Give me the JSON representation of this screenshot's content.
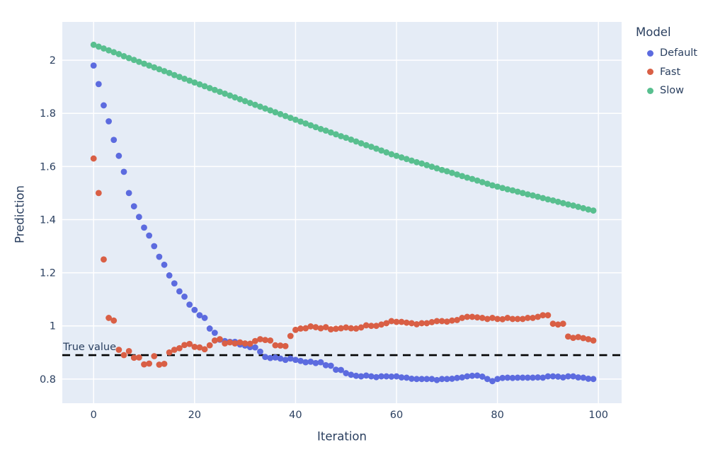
{
  "figure": {
    "background": "#ffffff",
    "plot_background": "#e5ecf6",
    "grid_color": "#ffffff",
    "font_color": "#2a3f5f"
  },
  "chart_data": {
    "type": "scatter",
    "title": "",
    "xlabel": "Iteration",
    "ylabel": "Prediction",
    "xlim": [
      -6.2,
      104.6
    ],
    "ylim": [
      0.709,
      2.144
    ],
    "xticks": [
      0,
      20,
      40,
      60,
      80,
      100
    ],
    "yticks": [
      0.8,
      1,
      1.2,
      1.4,
      1.6,
      1.8,
      2
    ],
    "grid": true,
    "legend": {
      "title": "Model",
      "position": "top-right-outside"
    },
    "hline": {
      "y": 0.89,
      "label": "True value",
      "color": "#000000",
      "style": "dashed"
    },
    "marker_diameter_px": 8.8,
    "x": [
      0,
      1,
      2,
      3,
      4,
      5,
      6,
      7,
      8,
      9,
      10,
      11,
      12,
      13,
      14,
      15,
      16,
      17,
      18,
      19,
      20,
      21,
      22,
      23,
      24,
      25,
      26,
      27,
      28,
      29,
      30,
      31,
      32,
      33,
      34,
      35,
      36,
      37,
      38,
      39,
      40,
      41,
      42,
      43,
      44,
      45,
      46,
      47,
      48,
      49,
      50,
      51,
      52,
      53,
      54,
      55,
      56,
      57,
      58,
      59,
      60,
      61,
      62,
      63,
      64,
      65,
      66,
      67,
      68,
      69,
      70,
      71,
      72,
      73,
      74,
      75,
      76,
      77,
      78,
      79,
      80,
      81,
      82,
      83,
      84,
      85,
      86,
      87,
      88,
      89,
      90,
      91,
      92,
      93,
      94,
      95,
      96,
      97,
      98,
      99
    ],
    "series": [
      {
        "name": "Default",
        "color": "#5c6bdf",
        "values": [
          1.98,
          1.91,
          1.83,
          1.77,
          1.7,
          1.64,
          1.58,
          1.5,
          1.45,
          1.41,
          1.37,
          1.34,
          1.3,
          1.26,
          1.23,
          1.19,
          1.16,
          1.13,
          1.11,
          1.08,
          1.06,
          1.04,
          1.03,
          0.99,
          0.974,
          0.948,
          0.943,
          0.94,
          0.94,
          0.93,
          0.926,
          0.92,
          0.919,
          0.903,
          0.883,
          0.879,
          0.881,
          0.877,
          0.872,
          0.877,
          0.872,
          0.868,
          0.863,
          0.865,
          0.86,
          0.863,
          0.852,
          0.85,
          0.835,
          0.834,
          0.822,
          0.816,
          0.812,
          0.81,
          0.813,
          0.81,
          0.807,
          0.81,
          0.81,
          0.809,
          0.81,
          0.806,
          0.805,
          0.801,
          0.8,
          0.8,
          0.8,
          0.8,
          0.796,
          0.8,
          0.8,
          0.801,
          0.804,
          0.806,
          0.81,
          0.812,
          0.813,
          0.809,
          0.8,
          0.792,
          0.8,
          0.804,
          0.805,
          0.804,
          0.805,
          0.805,
          0.805,
          0.805,
          0.806,
          0.805,
          0.81,
          0.81,
          0.809,
          0.806,
          0.81,
          0.81,
          0.806,
          0.805,
          0.801,
          0.8
        ]
      },
      {
        "name": "Fast",
        "color": "#d95f45",
        "values": [
          1.63,
          1.5,
          1.25,
          1.03,
          1.02,
          0.91,
          0.89,
          0.905,
          0.88,
          0.881,
          0.855,
          0.858,
          0.886,
          0.854,
          0.857,
          0.9,
          0.91,
          0.916,
          0.928,
          0.932,
          0.921,
          0.919,
          0.912,
          0.927,
          0.945,
          0.95,
          0.934,
          0.938,
          0.934,
          0.938,
          0.934,
          0.933,
          0.943,
          0.95,
          0.947,
          0.945,
          0.927,
          0.926,
          0.924,
          0.962,
          0.985,
          0.99,
          0.991,
          0.998,
          0.995,
          0.991,
          0.995,
          0.987,
          0.989,
          0.991,
          0.994,
          0.991,
          0.99,
          0.994,
          1.002,
          1.0,
          1.0,
          1.005,
          1.01,
          1.018,
          1.015,
          1.015,
          1.012,
          1.01,
          1.006,
          1.01,
          1.01,
          1.014,
          1.018,
          1.018,
          1.016,
          1.02,
          1.022,
          1.03,
          1.034,
          1.034,
          1.032,
          1.03,
          1.026,
          1.03,
          1.026,
          1.025,
          1.03,
          1.026,
          1.026,
          1.026,
          1.03,
          1.03,
          1.034,
          1.04,
          1.04,
          1.008,
          1.005,
          1.008,
          0.96,
          0.955,
          0.958,
          0.954,
          0.95,
          0.945
        ]
      },
      {
        "name": "Slow",
        "color": "#58bf8f",
        "values": [
          2.058,
          2.051,
          2.044,
          2.037,
          2.03,
          2.023,
          2.015,
          2.008,
          2.001,
          1.994,
          1.987,
          1.98,
          1.973,
          1.966,
          1.959,
          1.952,
          1.944,
          1.937,
          1.93,
          1.923,
          1.916,
          1.909,
          1.902,
          1.895,
          1.888,
          1.881,
          1.874,
          1.867,
          1.86,
          1.853,
          1.846,
          1.839,
          1.832,
          1.825,
          1.818,
          1.811,
          1.804,
          1.797,
          1.79,
          1.783,
          1.776,
          1.769,
          1.762,
          1.755,
          1.748,
          1.741,
          1.735,
          1.728,
          1.721,
          1.714,
          1.708,
          1.701,
          1.694,
          1.687,
          1.68,
          1.674,
          1.667,
          1.66,
          1.653,
          1.646,
          1.64,
          1.634,
          1.628,
          1.622,
          1.616,
          1.611,
          1.605,
          1.599,
          1.593,
          1.587,
          1.582,
          1.576,
          1.57,
          1.564,
          1.558,
          1.553,
          1.547,
          1.541,
          1.535,
          1.529,
          1.524,
          1.519,
          1.514,
          1.51,
          1.505,
          1.5,
          1.495,
          1.491,
          1.486,
          1.481,
          1.476,
          1.472,
          1.467,
          1.462,
          1.457,
          1.453,
          1.448,
          1.443,
          1.438,
          1.434
        ]
      }
    ]
  }
}
